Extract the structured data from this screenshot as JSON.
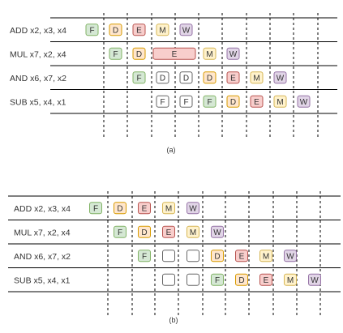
{
  "colors": {
    "F": {
      "fill": "#d5e8d4",
      "stroke": "#82b366"
    },
    "D": {
      "fill": "#ffe6cc",
      "stroke": "#d79b00"
    },
    "E": {
      "fill": "#f8cecc",
      "stroke": "#b85450"
    },
    "M": {
      "fill": "#fff2cc",
      "stroke": "#d6b656"
    },
    "W": {
      "fill": "#e1d5e7",
      "stroke": "#9673a6"
    },
    "stall": {
      "fill": "#ffffff",
      "stroke": "#666666"
    },
    "line": "#000000",
    "text": "#333333"
  },
  "diagrams": [
    {
      "caption": "(a)",
      "rows": [
        {
          "label": "ADD x2, x3, x4",
          "stages": [
            {
              "col": 0,
              "text": "F",
              "type": "F"
            },
            {
              "col": 1,
              "text": "D",
              "type": "D"
            },
            {
              "col": 2,
              "text": "E",
              "type": "E"
            },
            {
              "col": 3,
              "text": "M",
              "type": "M"
            },
            {
              "col": 4,
              "text": "W",
              "type": "W"
            }
          ]
        },
        {
          "label": "MUL x7, x2, x4",
          "stages": [
            {
              "col": 1,
              "text": "F",
              "type": "F"
            },
            {
              "col": 2,
              "text": "D",
              "type": "D"
            },
            {
              "col": 3,
              "span": 2,
              "text": "E",
              "type": "E"
            },
            {
              "col": 5,
              "text": "M",
              "type": "M"
            },
            {
              "col": 6,
              "text": "W",
              "type": "W"
            }
          ]
        },
        {
          "label": "AND x6, x7, x2",
          "stages": [
            {
              "col": 2,
              "text": "F",
              "type": "F"
            },
            {
              "col": 3,
              "text": "D",
              "type": "stall"
            },
            {
              "col": 4,
              "text": "D",
              "type": "stall"
            },
            {
              "col": 5,
              "text": "D",
              "type": "D"
            },
            {
              "col": 6,
              "text": "E",
              "type": "E"
            },
            {
              "col": 7,
              "text": "M",
              "type": "M"
            },
            {
              "col": 8,
              "text": "W",
              "type": "W"
            }
          ]
        },
        {
          "label": "SUB x5, x4, x1",
          "stages": [
            {
              "col": 3,
              "text": "F",
              "type": "stall"
            },
            {
              "col": 4,
              "text": "F",
              "type": "stall"
            },
            {
              "col": 5,
              "text": "F",
              "type": "F"
            },
            {
              "col": 6,
              "text": "D",
              "type": "D"
            },
            {
              "col": 7,
              "text": "E",
              "type": "E"
            },
            {
              "col": 8,
              "text": "M",
              "type": "M"
            },
            {
              "col": 9,
              "text": "W",
              "type": "W"
            }
          ]
        }
      ]
    },
    {
      "caption": "(b)",
      "rows": [
        {
          "label": "ADD x2, x3, x4",
          "stages": [
            {
              "col": 0,
              "text": "F",
              "type": "F"
            },
            {
              "col": 1,
              "text": "D",
              "type": "D"
            },
            {
              "col": 2,
              "text": "E",
              "type": "E"
            },
            {
              "col": 3,
              "text": "M",
              "type": "M"
            },
            {
              "col": 4,
              "text": "W",
              "type": "W"
            }
          ]
        },
        {
          "label": "MUL x7, x2, x4",
          "stages": [
            {
              "col": 1,
              "text": "F",
              "type": "F"
            },
            {
              "col": 2,
              "text": "D",
              "type": "D"
            },
            {
              "col": 3,
              "text": "E",
              "type": "E"
            },
            {
              "col": 4,
              "text": "M",
              "type": "M"
            },
            {
              "col": 5,
              "text": "W",
              "type": "W"
            }
          ]
        },
        {
          "label": "AND x6, x7, x2",
          "stages": [
            {
              "col": 2,
              "text": "F",
              "type": "F"
            },
            {
              "col": 3,
              "text": "",
              "type": "stall"
            },
            {
              "col": 4,
              "text": "",
              "type": "stall"
            },
            {
              "col": 5,
              "text": "D",
              "type": "D"
            },
            {
              "col": 6,
              "text": "E",
              "type": "E"
            },
            {
              "col": 7,
              "text": "M",
              "type": "M"
            },
            {
              "col": 8,
              "text": "W",
              "type": "W"
            }
          ]
        },
        {
          "label": "SUB x5, x4, x1",
          "stages": [
            {
              "col": 3,
              "text": "",
              "type": "stall"
            },
            {
              "col": 4,
              "text": "",
              "type": "stall"
            },
            {
              "col": 5,
              "text": "F",
              "type": "F"
            },
            {
              "col": 6,
              "text": "D",
              "type": "D"
            },
            {
              "col": 7,
              "text": "E",
              "type": "E"
            },
            {
              "col": 8,
              "text": "M",
              "type": "M"
            },
            {
              "col": 9,
              "text": "W",
              "type": "W"
            }
          ]
        }
      ]
    }
  ]
}
